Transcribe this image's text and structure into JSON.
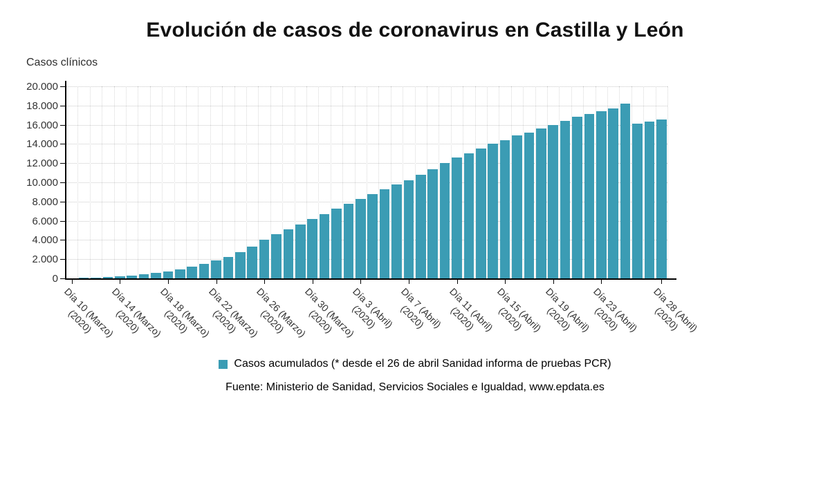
{
  "chart_data": {
    "type": "bar",
    "title": "Evolución de casos de coronavirus en Castilla y León",
    "ylabel": "Casos clínicos",
    "xlabel": "",
    "ylim": [
      0,
      20000
    ],
    "y_tick_step": 2000,
    "y_tick_labels": [
      "0",
      "2.000",
      "4.000",
      "6.000",
      "8.000",
      "10.000",
      "12.000",
      "14.000",
      "16.000",
      "18.000",
      "20.000"
    ],
    "grid": "dotted",
    "bar_color": "#3b9cb4",
    "n_bars": 50,
    "values": [
      30,
      60,
      100,
      150,
      210,
      290,
      400,
      540,
      700,
      930,
      1200,
      1500,
      1900,
      2200,
      2700,
      3300,
      4000,
      4600,
      5100,
      5600,
      6200,
      6700,
      7300,
      7800,
      8300,
      8800,
      9300,
      9800,
      10200,
      10800,
      11400,
      12000,
      12600,
      13000,
      13500,
      14000,
      14400,
      14900,
      15200,
      15600,
      16000,
      16400,
      16800,
      17100,
      17400,
      17700,
      18200,
      16150,
      16300,
      16550
    ],
    "x_ticks": [
      {
        "bar_index": 0,
        "label": "Día 10 (Marzo)",
        "sub": "(2020)"
      },
      {
        "bar_index": 4,
        "label": "Día 14 (Marzo)",
        "sub": "(2020)"
      },
      {
        "bar_index": 8,
        "label": "Día 18 (Marzo)",
        "sub": "(2020)"
      },
      {
        "bar_index": 12,
        "label": "Día 22 (Marzo)",
        "sub": "(2020)"
      },
      {
        "bar_index": 16,
        "label": "Día 26 (Marzo)",
        "sub": "(2020)"
      },
      {
        "bar_index": 20,
        "label": "Día 30 (Marzo)",
        "sub": "(2020)"
      },
      {
        "bar_index": 24,
        "label": "Día 3 (Abril)",
        "sub": "(2020)"
      },
      {
        "bar_index": 28,
        "label": "Día 7 (Abril)",
        "sub": "(2020)"
      },
      {
        "bar_index": 32,
        "label": "Día 11 (Abril)",
        "sub": "(2020)"
      },
      {
        "bar_index": 36,
        "label": "Día 15 (Abril)",
        "sub": "(2020)"
      },
      {
        "bar_index": 40,
        "label": "Día 19 (Abril)",
        "sub": "(2020)"
      },
      {
        "bar_index": 44,
        "label": "Día 23 (Abril)",
        "sub": "(2020)"
      },
      {
        "bar_index": 49,
        "label": "Día 28 (Abril)",
        "sub": "(2020)"
      }
    ],
    "legend": [
      {
        "label": "Casos acumulados (* desde el 26 de abril Sanidad informa de pruebas PCR)",
        "color": "#3b9cb4",
        "position": "bottom"
      }
    ],
    "source": "Fuente: Ministerio de Sanidad, Servicios Sociales e Igualdad, www.epdata.es"
  }
}
